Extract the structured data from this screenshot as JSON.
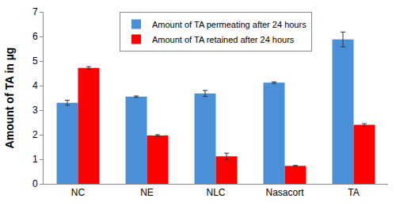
{
  "chart_data": {
    "type": "bar",
    "y_label": "Amount of TA in µg",
    "categories": [
      "NC",
      "NE",
      "NLC",
      "Nasacort",
      "TA"
    ],
    "series": [
      {
        "name": "Amount of TA permeating after 24 hours",
        "color": "#4a90d9",
        "values": [
          3.3,
          3.55,
          3.68,
          4.12,
          5.88
        ],
        "errors": [
          0.1,
          0.03,
          0.12,
          0.03,
          0.3
        ]
      },
      {
        "name": "Amount of TA retained after 24 hours",
        "color": "#ff0000",
        "values": [
          4.72,
          1.97,
          1.12,
          0.73,
          2.4
        ],
        "errors": [
          0.05,
          0.03,
          0.13,
          0.02,
          0.05
        ]
      }
    ],
    "ylim": [
      0,
      7
    ],
    "yticks": [
      0,
      1,
      2,
      3,
      4,
      5,
      6,
      7
    ],
    "grid": false,
    "legend": "top"
  }
}
